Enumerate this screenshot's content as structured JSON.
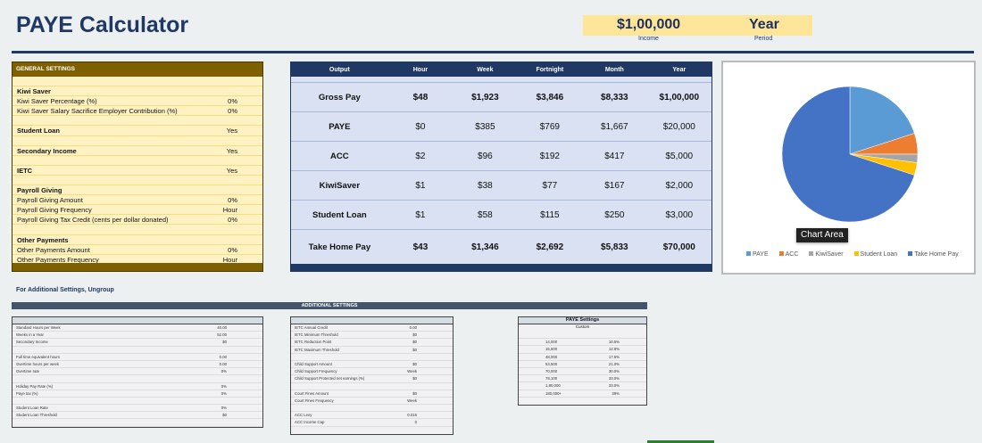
{
  "title": "PAYE Calculator",
  "header": {
    "income_value": "$1,00,000",
    "income_label": "Income",
    "period_value": "Year",
    "period_label": "Period"
  },
  "general": {
    "title": "GENERAL SETTINGS",
    "rows": [
      {
        "label": "",
        "value": ""
      },
      {
        "label": "Kiwi Saver",
        "value": "",
        "bold": true
      },
      {
        "label": "Kiwi Saver Percentage (%)",
        "value": "0%"
      },
      {
        "label": "Kiwi Saver Salary Sacrifice Employer Contribution (%)",
        "value": "0%"
      },
      {
        "label": "",
        "value": ""
      },
      {
        "label": "Student Loan",
        "value": "Yes",
        "bold": true
      },
      {
        "label": "",
        "value": ""
      },
      {
        "label": "Secondary Income",
        "value": "Yes",
        "bold": true
      },
      {
        "label": "",
        "value": ""
      },
      {
        "label": "IETC",
        "value": "Yes",
        "bold": true
      },
      {
        "label": "",
        "value": ""
      },
      {
        "label": "Payroll Giving",
        "value": "",
        "bold": true
      },
      {
        "label": "Payroll Giving Amount",
        "value": "0%"
      },
      {
        "label": "Payroll Giving Frequency",
        "value": "Hour"
      },
      {
        "label": "Payroll Giving Tax Credit (cents per dollar donated)",
        "value": "0%"
      },
      {
        "label": "",
        "value": ""
      },
      {
        "label": "Other Payments",
        "value": "",
        "bold": true
      },
      {
        "label": "Other Payments Amount",
        "value": "0%"
      },
      {
        "label": "Other Payments Frequency",
        "value": "Hour"
      }
    ]
  },
  "output": {
    "headers": [
      "Output",
      "Hour",
      "Week",
      "Fortnight",
      "Month",
      "Year"
    ],
    "rows": [
      [
        "Gross Pay",
        "$48",
        "$1,923",
        "$3,846",
        "$8,333",
        "$1,00,000"
      ],
      [
        "PAYE",
        "$0",
        "$385",
        "$769",
        "$1,667",
        "$20,000"
      ],
      [
        "ACC",
        "$2",
        "$96",
        "$192",
        "$417",
        "$5,000"
      ],
      [
        "KiwiSaver",
        "$1",
        "$38",
        "$77",
        "$167",
        "$2,000"
      ],
      [
        "Student Loan",
        "$1",
        "$58",
        "$115",
        "$250",
        "$3,000"
      ],
      [
        "Take Home Pay",
        "$43",
        "$1,346",
        "$2,692",
        "$5,833",
        "$70,000"
      ]
    ]
  },
  "chart_data": {
    "type": "pie",
    "categories": [
      "PAYE",
      "ACC",
      "KiwiSaver",
      "Student Loan",
      "Take Home Pay"
    ],
    "values": [
      20000,
      5000,
      2000,
      3000,
      70000
    ],
    "colors": [
      "#5b9bd5",
      "#ed7d31",
      "#a5a5a5",
      "#ffc000",
      "#4472c4"
    ],
    "legend": "bottom",
    "tooltip": "Chart Area"
  },
  "note": "For Additional Settings, Ungroup",
  "additional": {
    "title": "ADDITIONAL SETTINGS",
    "left": [
      [
        "Standard Hours per Week",
        "40.00"
      ],
      [
        "Weeks in a Year",
        "52.00"
      ],
      [
        "Secondary Income",
        "$0"
      ],
      [
        "",
        ""
      ],
      [
        "Full time equivalent hours",
        "0.00"
      ],
      [
        "Overtime hours per week",
        "0.00"
      ],
      [
        "Overtime rate",
        "0%"
      ],
      [
        "",
        ""
      ],
      [
        "Holiday Pay Rate (%)",
        "0%"
      ],
      [
        "Paye tax (%)",
        "0%"
      ],
      [
        "",
        ""
      ],
      [
        "Student Loan Rate",
        "0%"
      ],
      [
        "Student Loan Threshold",
        "$0"
      ],
      [
        "",
        ""
      ]
    ],
    "middle": [
      [
        "IETC Annual Credit",
        "0.00"
      ],
      [
        "IETC Minimum Threshold",
        "$0"
      ],
      [
        "IETC Reduction Point",
        "$0"
      ],
      [
        "IETC Maximum Threshold",
        "$0"
      ],
      [
        "",
        ""
      ],
      [
        "Child Support Amount",
        "$0"
      ],
      [
        "Child Support Frequency",
        "Week"
      ],
      [
        "Child Support Protected net earnings (%)",
        "$0"
      ],
      [
        "",
        ""
      ],
      [
        "Court Fines Amount",
        "$0"
      ],
      [
        "Court Fines Frequency",
        "Week"
      ],
      [
        "",
        ""
      ],
      [
        "ACC Levy",
        "0.016"
      ],
      [
        "ACC Income Cap",
        "0"
      ]
    ],
    "paye": {
      "title": "PAYE Settings",
      "subtitle": "Custom",
      "rows": [
        [
          "",
          ""
        ],
        [
          "14,000",
          "10.5%"
        ],
        [
          "15,600",
          "12.8%"
        ],
        [
          "48,000",
          "17.5%"
        ],
        [
          "53,500",
          "21.0%"
        ],
        [
          "70,000",
          "30.0%"
        ],
        [
          "78,100",
          "33.0%"
        ],
        [
          "1,80,000",
          "33.0%"
        ],
        [
          "180,000+",
          "39%"
        ]
      ]
    }
  }
}
